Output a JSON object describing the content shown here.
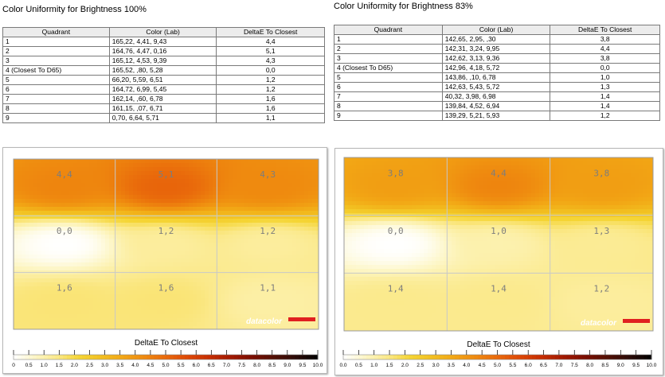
{
  "chart_data": [
    {
      "type": "table",
      "title": "Color Uniformity for Brightness 100%",
      "columns": [
        "Quadrant",
        "Color (Lab)",
        "DeltaE To Closest"
      ],
      "rows": [
        [
          "1",
          "165,22,   4,41,   9,43",
          "4,4"
        ],
        [
          "2",
          "164,76,   4,47,   0,16",
          "5,1"
        ],
        [
          "3",
          "165,12,   4,53,   9,39",
          "4,3"
        ],
        [
          "4 (Closest To D65)",
          "165,52,   ,80,   5,28",
          "0,0"
        ],
        [
          "5",
          "66,20,   5,59,   6,51",
          "1,2"
        ],
        [
          "6",
          "164,72,   6,99,   5,45",
          "1,2"
        ],
        [
          "7",
          "162,14,   ,60,   6,78",
          "1,6"
        ],
        [
          "8",
          "161,15,   ,07,   6,71",
          "1,6"
        ],
        [
          "9",
          "0,70,   6,64,   5,71",
          "1,1"
        ]
      ]
    },
    {
      "type": "table",
      "title": "Color Uniformity for Brightness 83%",
      "columns": [
        "Quadrant",
        "Color (Lab)",
        "DeltaE To Closest"
      ],
      "rows": [
        [
          "1",
          "142,65,   2,95,   ,30",
          "3,8"
        ],
        [
          "2",
          "142,31,   3,24,   9,95",
          "4,4"
        ],
        [
          "3",
          "142,62,   3,13,   9,36",
          "3,8"
        ],
        [
          "4 (Closest To D65)",
          "142,96,   4,18,   5,72",
          "0,0"
        ],
        [
          "5",
          "143,86,   ,10,   6,78",
          "1,0"
        ],
        [
          "6",
          "142,63,   5,43,   5,72",
          "1,3"
        ],
        [
          "7",
          "40,32,   3,98,   6,98",
          "1,4"
        ],
        [
          "8",
          "139,84,   4,52,   6,94",
          "1,4"
        ],
        [
          "9",
          "139,29,   5,21,   5,93",
          "1,2"
        ]
      ]
    },
    {
      "type": "heatmap",
      "rows": 3,
      "cols": 3,
      "cell_labels": [
        "4,4",
        "5,1",
        "4,3",
        "0,0",
        "1,2",
        "1,2",
        "1,6",
        "1,6",
        "1,1"
      ],
      "values": [
        4.4,
        5.1,
        4.3,
        0.0,
        1.2,
        1.2,
        1.6,
        1.6,
        1.1
      ],
      "watermark": "datacolor",
      "colorbar_label": "DeltaE To Closest",
      "colorbar_ticks": [
        "0",
        "0.5",
        "1.0",
        "1.5",
        "2.0",
        "2.5",
        "3.0",
        "3.5",
        "4.0",
        "4.5",
        "5.0",
        "5.5",
        "6.0",
        "6.5",
        "7.0",
        "7.5",
        "8.0",
        "8.5",
        "9.0",
        "9.5",
        "10.0"
      ],
      "colorbar_range": [
        0,
        10
      ]
    },
    {
      "type": "heatmap",
      "rows": 3,
      "cols": 3,
      "cell_labels": [
        "3,8",
        "4,4",
        "3,8",
        "0,0",
        "1,0",
        "1,3",
        "1,4",
        "1,4",
        "1,2"
      ],
      "values": [
        3.8,
        4.4,
        3.8,
        0.0,
        1.0,
        1.3,
        1.4,
        1.4,
        1.2
      ],
      "watermark": "datacolor",
      "colorbar_label": "DeltaE To Closest",
      "colorbar_ticks": [
        "0.0",
        "0.5",
        "1.0",
        "1.5",
        "2.0",
        "2.5",
        "3.0",
        "3.5",
        "4.0",
        "4.5",
        "5.0",
        "5.5",
        "6.0",
        "6.5",
        "7.0",
        "7.5",
        "8.0",
        "8.5",
        "9.0",
        "9.5",
        "10.0"
      ],
      "colorbar_range": [
        0,
        10
      ]
    }
  ],
  "colors": {
    "scale": [
      "#ffffff",
      "#fdf6c6",
      "#fbe98a",
      "#f5d535",
      "#f2c021",
      "#f2a715",
      "#ef8a0f",
      "#e9690b",
      "#de4906",
      "#c62e02",
      "#a21a02",
      "#7a0e02",
      "#521005",
      "#2c0b08",
      "#000000"
    ],
    "watermark": "#ffffff",
    "watermark_bar": "#e02020"
  }
}
